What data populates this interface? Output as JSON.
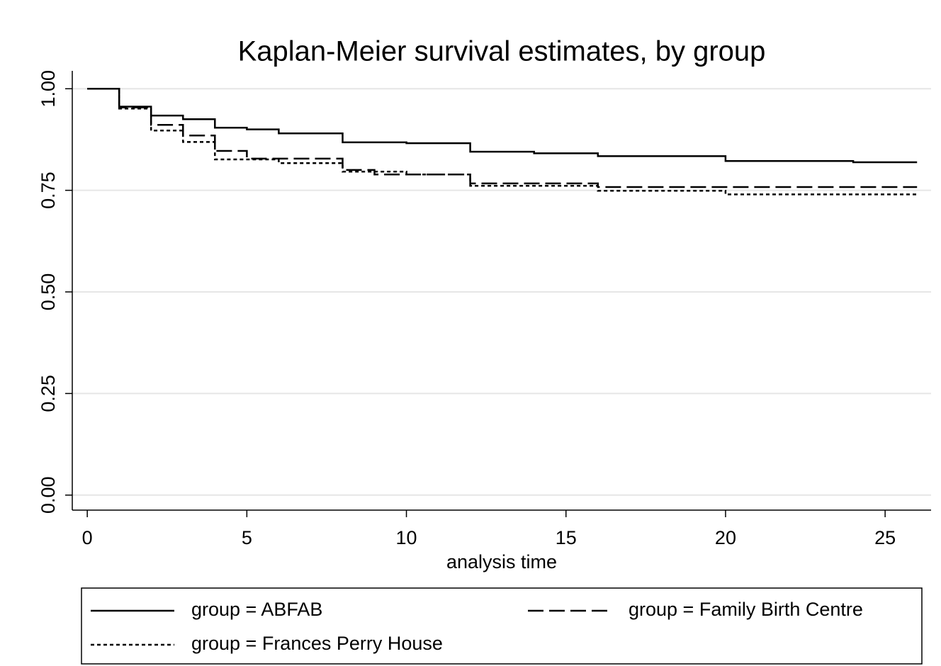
{
  "chart_data": {
    "type": "step",
    "title": "Kaplan-Meier survival estimates, by group",
    "xlabel": "analysis time",
    "xlim": [
      -0.47,
      26.44
    ],
    "ylim": [
      -0.037,
      1.044
    ],
    "xticks": [
      0,
      5,
      10,
      15,
      20,
      25
    ],
    "yticks": [
      {
        "value": 0,
        "label": "0.00"
      },
      {
        "value": 0.25,
        "label": "0.25"
      },
      {
        "value": 0.5,
        "label": "0.50"
      },
      {
        "value": 0.75,
        "label": "0.75"
      },
      {
        "value": 1,
        "label": "1.00"
      }
    ],
    "grid": true,
    "legend": "bottom",
    "series": [
      {
        "name": "group = ABFAB",
        "color": "#000000",
        "style": "solid",
        "x": [
          0,
          1,
          2,
          3,
          4,
          5,
          6,
          8,
          10,
          12,
          14,
          16,
          20,
          24,
          26
        ],
        "values": [
          1.0,
          0.956,
          0.934,
          0.925,
          0.904,
          0.9,
          0.89,
          0.868,
          0.866,
          0.845,
          0.841,
          0.834,
          0.822,
          0.819,
          0.819
        ]
      },
      {
        "name": "group = Family Birth Centre",
        "color": "#000000",
        "style": "dashed",
        "x": [
          0,
          1,
          2,
          3,
          4,
          5,
          8,
          9,
          12,
          16,
          26
        ],
        "values": [
          1.0,
          0.954,
          0.911,
          0.885,
          0.847,
          0.828,
          0.8,
          0.789,
          0.767,
          0.758,
          0.758
        ]
      },
      {
        "name": "group = Frances Perry House",
        "color": "#000000",
        "style": "dotted",
        "x": [
          0,
          1,
          2,
          3,
          4,
          6,
          8,
          10,
          12,
          16,
          20,
          26
        ],
        "values": [
          1.0,
          0.951,
          0.897,
          0.869,
          0.826,
          0.817,
          0.796,
          0.789,
          0.761,
          0.749,
          0.74,
          0.74
        ]
      }
    ]
  }
}
